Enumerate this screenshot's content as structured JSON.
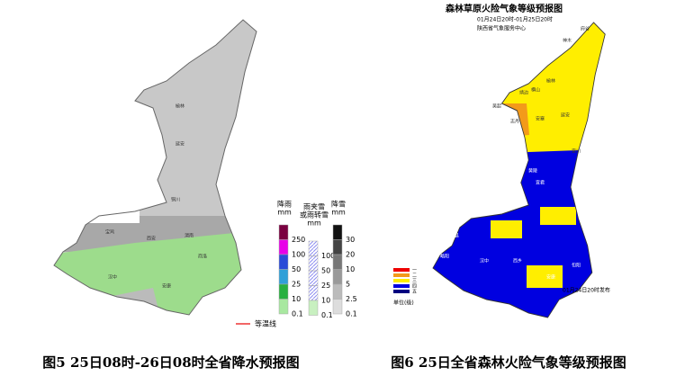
{
  "left_map": {
    "legend": [
      {
        "title": [
          "降雨",
          "mm"
        ],
        "values": [
          250,
          100,
          50,
          25,
          10,
          0.1
        ]
      },
      {
        "title": [
          "雨夹雪",
          "或雨转雪",
          "mm"
        ],
        "values": [
          100,
          50,
          25,
          10,
          0.1
        ]
      },
      {
        "title": [
          "降雪",
          "mm"
        ],
        "values": [
          30,
          20,
          10,
          5,
          2.5,
          0.1
        ]
      }
    ],
    "line_legend": "等温线",
    "place_labels": [
      "榆林",
      "延安",
      "铜川",
      "渭南",
      "宝鸡",
      "西安",
      "商洛",
      "汉中",
      "安康"
    ],
    "caption": "图5 25日08时-26日08时全省降水预报图"
  },
  "right_map": {
    "title": "森林草原火险气象等级预报图",
    "subtitle": "01月24日20时-01月25日20时",
    "issuer": "陕西省气象服务中心",
    "legend": [
      "一",
      "二",
      "三",
      "四",
      "五"
    ],
    "unit": "单位(级)",
    "issued": "01月24日20时发布",
    "place_labels": [
      "府谷",
      "神木",
      "榆林",
      "横山",
      "靖边",
      "吴起",
      "志丹",
      "安塞",
      "延安",
      "宜川",
      "黄陵",
      "宜君",
      "彬县",
      "宝鸡",
      "凤县",
      "略阳",
      "汉中",
      "西乡",
      "安康",
      "旬阳"
    ],
    "caption": "图6 25日全省森林火险气象等级预报图"
  }
}
